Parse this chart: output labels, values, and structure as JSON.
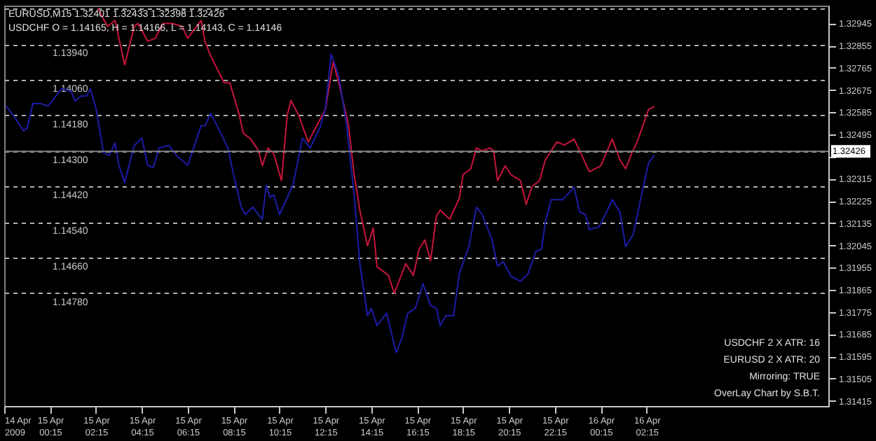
{
  "chart_data": {
    "type": "line",
    "marker": "none",
    "line_style": "solid",
    "grid": "y",
    "annotations": [
      "EURUSD,M15 1.32401 1.32433 1.32398 1.32426",
      "USDCHF O = 1.14165, H = 1.14166, L = 1.14143, C = 1.14146",
      "USDCHF 2 X ATR: 16",
      "EURUSD 2 X ATR: 20",
      "Mirroring: TRUE",
      "OverLay Chart by S.B.T."
    ],
    "xlim": [
      "2009-04-14T22:15",
      "2009-04-16T10:10"
    ],
    "xticks": [
      {
        "value": "2009-04-14T22:15",
        "label": "14 Apr 2009"
      },
      {
        "value": "2009-04-15T00:15",
        "label": "15 Apr 00:15"
      },
      {
        "value": "2009-04-15T02:15",
        "label": "15 Apr 02:15"
      },
      {
        "value": "2009-04-15T04:15",
        "label": "15 Apr 04:15"
      },
      {
        "value": "2009-04-15T06:15",
        "label": "15 Apr 06:15"
      },
      {
        "value": "2009-04-15T08:15",
        "label": "15 Apr 08:15"
      },
      {
        "value": "2009-04-15T10:15",
        "label": "15 Apr 10:15"
      },
      {
        "value": "2009-04-15T12:15",
        "label": "15 Apr 12:15"
      },
      {
        "value": "2009-04-15T14:15",
        "label": "15 Apr 14:15"
      },
      {
        "value": "2009-04-15T16:15",
        "label": "15 Apr 16:15"
      },
      {
        "value": "2009-04-15T18:15",
        "label": "15 Apr 18:15"
      },
      {
        "value": "2009-04-15T20:15",
        "label": "15 Apr 20:15"
      },
      {
        "value": "2009-04-15T22:15",
        "label": "15 Apr 22:15"
      },
      {
        "value": "2009-04-16T00:15",
        "label": "16 Apr 00:15"
      },
      {
        "value": "2009-04-16T02:15",
        "label": "16 Apr 02:15"
      }
    ],
    "ylim": [
      1.1516,
      1.1381
    ],
    "yticks": [
      {
        "value": 1.1382,
        "label": null
      },
      {
        "value": 1.1394,
        "label": "1.13940"
      },
      {
        "value": 1.1406,
        "label": "1.14060"
      },
      {
        "value": 1.1418,
        "label": "1.14180"
      },
      {
        "value": 1.143,
        "label": "1.14300"
      },
      {
        "value": 1.1442,
        "label": "1.14420"
      },
      {
        "value": 1.1454,
        "label": "1.14540"
      },
      {
        "value": 1.1466,
        "label": "1.14660"
      },
      {
        "value": 1.1478,
        "label": "1.14780"
      }
    ],
    "y2lim": [
      1.31394,
      1.33017
    ],
    "y2ticks": [
      1.31415,
      1.31505,
      1.31595,
      1.31685,
      1.31775,
      1.31865,
      1.31955,
      1.32045,
      1.32135,
      1.32225,
      1.32315,
      {
        "value": 1.32405,
        "label": null
      },
      1.32495,
      1.32585,
      1.32675,
      1.32765,
      1.32855,
      1.32945
    ],
    "ref_lines": [
      {
        "axis": "y2",
        "value": 1.32426,
        "label": "1.32426",
        "color": "#808080"
      }
    ],
    "series": [
      {
        "color": "#c8143c",
        "axis": "y",
        "x": [
          "2009-04-15T02:20",
          "2009-04-15T02:45",
          "2009-04-15T03:05",
          "2009-04-15T03:30",
          "2009-04-15T03:55",
          "2009-04-15T04:05",
          "2009-04-15T04:30",
          "2009-04-15T04:50",
          "2009-04-15T05:10",
          "2009-04-15T05:35",
          "2009-04-15T06:00",
          "2009-04-15T06:15",
          "2009-04-15T06:50",
          "2009-04-15T07:00",
          "2009-04-15T07:15",
          "2009-04-15T07:50",
          "2009-04-15T08:05",
          "2009-04-15T08:30",
          "2009-04-15T08:40",
          "2009-04-15T09:00",
          "2009-04-15T09:20",
          "2009-04-15T09:30",
          "2009-04-15T09:45",
          "2009-04-15T10:00",
          "2009-04-15T10:20",
          "2009-04-15T10:35",
          "2009-04-15T10:45",
          "2009-04-15T11:05",
          "2009-04-15T11:30",
          "2009-04-15T11:50",
          "2009-04-15T12:15",
          "2009-04-15T12:35",
          "2009-04-15T12:50",
          "2009-04-15T13:15",
          "2009-04-15T13:30",
          "2009-04-15T13:45",
          "2009-04-15T14:05",
          "2009-04-15T14:20",
          "2009-04-15T14:30",
          "2009-04-15T15:00",
          "2009-04-15T15:15",
          "2009-04-15T15:45",
          "2009-04-15T16:05",
          "2009-04-15T16:20",
          "2009-04-15T16:35",
          "2009-04-15T16:50",
          "2009-04-15T17:05",
          "2009-04-15T17:15",
          "2009-04-15T17:40",
          "2009-04-15T18:05",
          "2009-04-15T18:15",
          "2009-04-15T18:35",
          "2009-04-15T18:50",
          "2009-04-15T19:05",
          "2009-04-15T19:25",
          "2009-04-15T19:35",
          "2009-04-15T19:45",
          "2009-04-15T20:05",
          "2009-04-15T20:20",
          "2009-04-15T20:45",
          "2009-04-15T21:00",
          "2009-04-15T21:15",
          "2009-04-15T21:35",
          "2009-04-15T21:50",
          "2009-04-15T22:20",
          "2009-04-15T22:40",
          "2009-04-15T23:05",
          "2009-04-15T23:20",
          "2009-04-15T23:45",
          "2009-04-16T00:15",
          "2009-04-16T00:45",
          "2009-04-16T01:05",
          "2009-04-16T01:20",
          "2009-04-16T01:35",
          "2009-04-16T01:50",
          "2009-04-16T02:20",
          "2009-04-16T02:35"
        ],
        "values": [
          1.1382,
          1.1388,
          1.1386,
          1.1401,
          1.1388,
          1.1387,
          1.1393,
          1.1392,
          1.1387,
          1.1387,
          1.1388,
          1.1392,
          1.1386,
          1.1393,
          1.1398,
          1.1407,
          1.1407,
          1.1418,
          1.1424,
          1.1426,
          1.143,
          1.1435,
          1.1429,
          1.1431,
          1.144,
          1.1418,
          1.1413,
          1.1418,
          1.1427,
          1.1422,
          1.1416,
          1.14,
          1.1407,
          1.1421,
          1.1438,
          1.145,
          1.1462,
          1.1456,
          1.1469,
          1.1472,
          1.1478,
          1.1468,
          1.1472,
          1.1463,
          1.146,
          1.1467,
          1.1452,
          1.145,
          1.1453,
          1.1446,
          1.1438,
          1.1436,
          1.1429,
          1.143,
          1.1429,
          1.143,
          1.144,
          1.1435,
          1.1438,
          1.144,
          1.1448,
          1.1442,
          1.144,
          1.1433,
          1.1427,
          1.1428,
          1.1426,
          1.143,
          1.1437,
          1.1435,
          1.1426,
          1.1433,
          1.1436,
          1.1431,
          1.1427,
          1.1416,
          1.1415
        ]
      },
      {
        "color": "#1c1ca8",
        "axis": "y2",
        "x": [
          "2009-04-14T22:20",
          "2009-04-14T22:40",
          "2009-04-14T23:05",
          "2009-04-14T23:15",
          "2009-04-14T23:30",
          "2009-04-14T23:50",
          "2009-04-15T00:10",
          "2009-04-15T00:25",
          "2009-04-15T00:45",
          "2009-04-15T01:10",
          "2009-04-15T01:20",
          "2009-04-15T01:35",
          "2009-04-15T01:50",
          "2009-04-15T02:00",
          "2009-04-15T02:15",
          "2009-04-15T02:35",
          "2009-04-15T02:50",
          "2009-04-15T03:05",
          "2009-04-15T03:15",
          "2009-04-15T03:30",
          "2009-04-15T03:55",
          "2009-04-15T04:15",
          "2009-04-15T04:30",
          "2009-04-15T04:45",
          "2009-04-15T05:00",
          "2009-04-15T05:25",
          "2009-04-15T05:45",
          "2009-04-15T06:15",
          "2009-04-15T06:50",
          "2009-04-15T07:00",
          "2009-04-15T07:15",
          "2009-04-15T07:35",
          "2009-04-15T08:00",
          "2009-04-15T08:15",
          "2009-04-15T08:35",
          "2009-04-15T08:45",
          "2009-04-15T09:05",
          "2009-04-15T09:30",
          "2009-04-15T09:40",
          "2009-04-15T09:50",
          "2009-04-15T10:00",
          "2009-04-15T10:15",
          "2009-04-15T10:50",
          "2009-04-15T11:15",
          "2009-04-15T11:35",
          "2009-04-15T12:00",
          "2009-04-15T12:15",
          "2009-04-15T12:30",
          "2009-04-15T12:50",
          "2009-04-15T13:10",
          "2009-04-15T13:30",
          "2009-04-15T13:45",
          "2009-04-15T14:05",
          "2009-04-15T14:15",
          "2009-04-15T14:30",
          "2009-04-15T14:55",
          "2009-04-15T15:20",
          "2009-04-15T15:35",
          "2009-04-15T15:50",
          "2009-04-15T16:10",
          "2009-04-15T16:30",
          "2009-04-15T16:50",
          "2009-04-15T17:05",
          "2009-04-15T17:15",
          "2009-04-15T17:30",
          "2009-04-15T17:50",
          "2009-04-15T18:05",
          "2009-04-15T18:30",
          "2009-04-15T18:50",
          "2009-04-15T19:05",
          "2009-04-15T19:30",
          "2009-04-15T19:45",
          "2009-04-15T20:00",
          "2009-04-15T20:20",
          "2009-04-15T20:45",
          "2009-04-15T21:05",
          "2009-04-15T21:25",
          "2009-04-15T21:40",
          "2009-04-15T21:50",
          "2009-04-15T22:05",
          "2009-04-15T22:35",
          "2009-04-15T23:05",
          "2009-04-15T23:20",
          "2009-04-15T23:35",
          "2009-04-15T23:45",
          "2009-04-16T00:10",
          "2009-04-16T00:30",
          "2009-04-16T00:45",
          "2009-04-16T01:05",
          "2009-04-16T01:20",
          "2009-04-16T01:40",
          "2009-04-16T02:00",
          "2009-04-16T02:20",
          "2009-04-16T02:35"
        ],
        "values": [
          1.3261,
          1.3257,
          1.3251,
          1.3252,
          1.3262,
          1.3262,
          1.3261,
          1.3264,
          1.3268,
          1.3267,
          1.3263,
          1.3265,
          1.3265,
          1.3268,
          1.326,
          1.3242,
          1.3241,
          1.3246,
          1.3237,
          1.323,
          1.3245,
          1.3248,
          1.3237,
          1.3236,
          1.3244,
          1.3245,
          1.3241,
          1.3237,
          1.3253,
          1.3253,
          1.3258,
          1.3252,
          1.3244,
          1.3233,
          1.322,
          1.3217,
          1.322,
          1.3215,
          1.3229,
          1.3224,
          1.3225,
          1.3217,
          1.3229,
          1.3248,
          1.3244,
          1.3252,
          1.326,
          1.3282,
          1.3273,
          1.3254,
          1.3225,
          1.3197,
          1.3176,
          1.3179,
          1.3172,
          1.3177,
          1.3161,
          1.3167,
          1.3177,
          1.3179,
          1.3189,
          1.318,
          1.3179,
          1.3172,
          1.3176,
          1.3176,
          1.3193,
          1.3204,
          1.322,
          1.3217,
          1.3207,
          1.3196,
          1.3198,
          1.3192,
          1.319,
          1.3193,
          1.3202,
          1.3203,
          1.3214,
          1.3223,
          1.3223,
          1.3228,
          1.3218,
          1.3217,
          1.3211,
          1.3212,
          1.3218,
          1.3223,
          1.3218,
          1.3204,
          1.3209,
          1.3224,
          1.3238,
          1.3241
        ]
      }
    ]
  }
}
